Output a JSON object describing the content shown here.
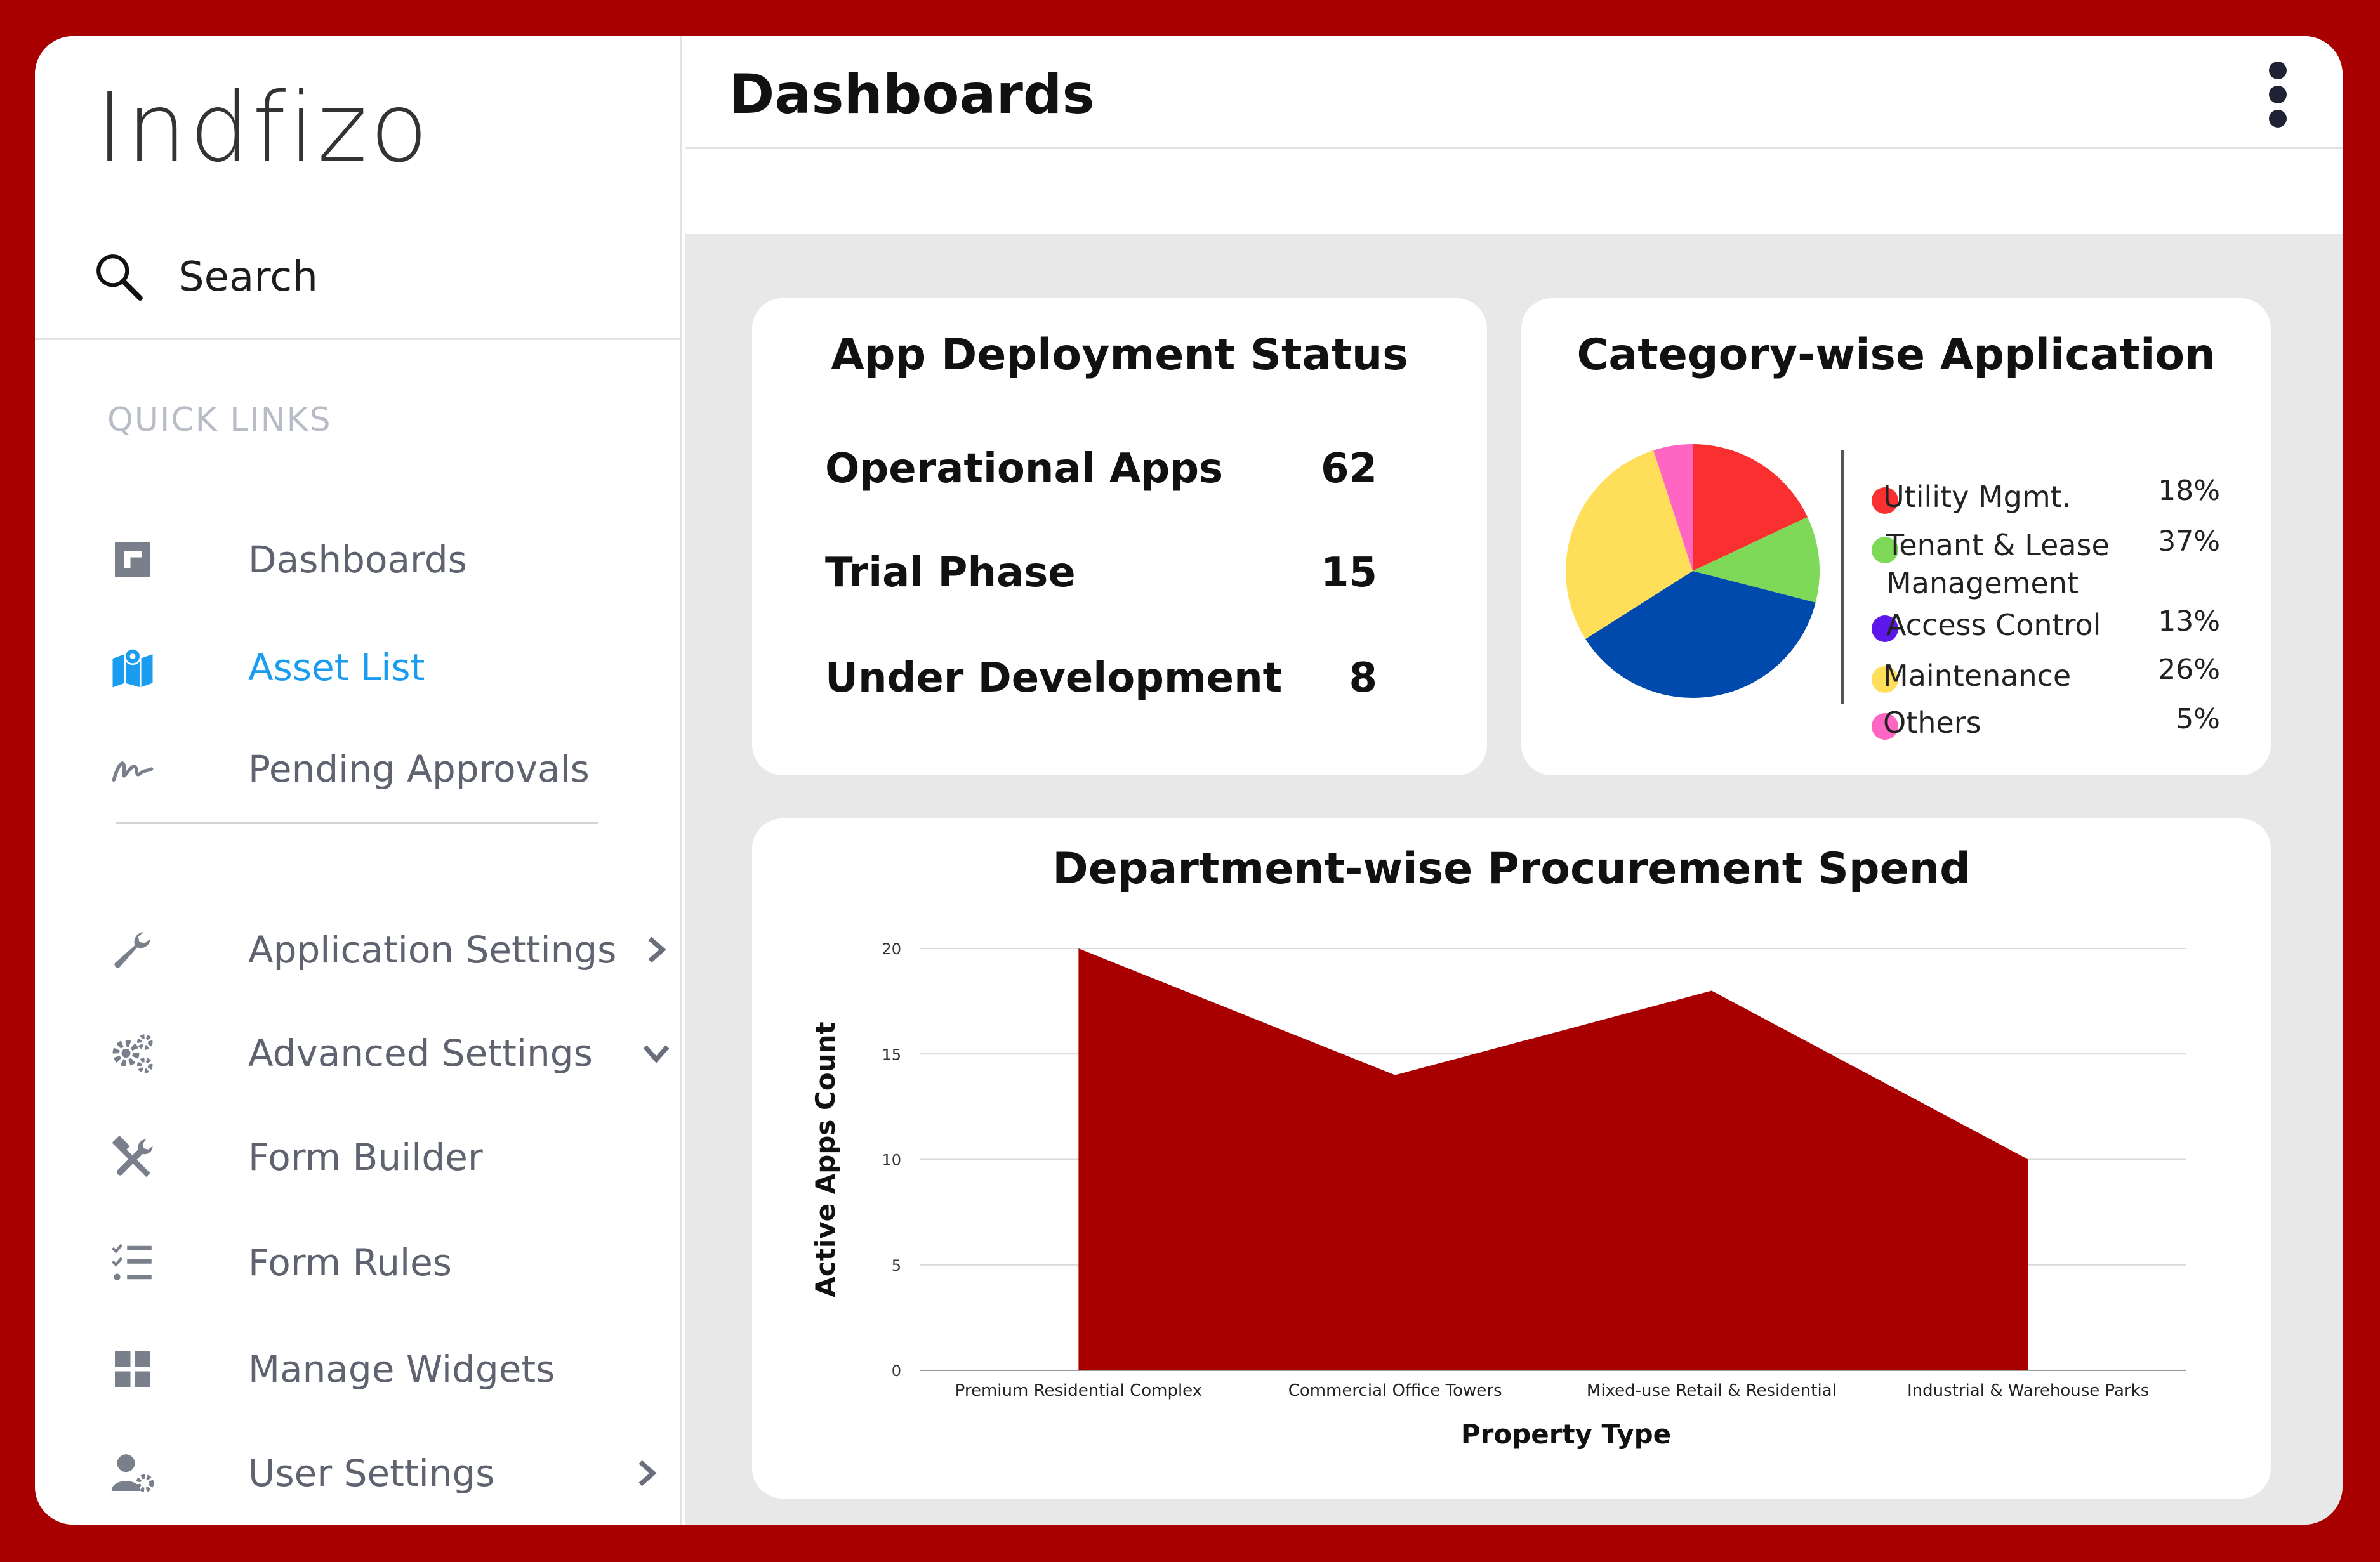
{
  "app": {
    "logo_text": "Indfizo"
  },
  "sidebar": {
    "search_label": "Search",
    "section_title": "QUICK LINKS",
    "quick_links": [
      {
        "label": "Dashboards",
        "icon": "dashboard-icon"
      },
      {
        "label": "Asset List",
        "icon": "map-icon",
        "active": true
      },
      {
        "label": "Pending Approvals",
        "icon": "signature-icon"
      }
    ],
    "settings": [
      {
        "label": "Application Settings",
        "icon": "wrench-icon",
        "chevron": "right"
      },
      {
        "label": "Advanced Settings",
        "icon": "gears-icon",
        "chevron": "down"
      },
      {
        "label": "Form Builder",
        "icon": "tools-icon"
      },
      {
        "label": "Form Rules",
        "icon": "checklist-icon"
      },
      {
        "label": "Manage Widgets",
        "icon": "widgets-icon"
      },
      {
        "label": "User Settings",
        "icon": "user-gear-icon",
        "chevron": "right"
      }
    ]
  },
  "header": {
    "title": "Dashboards"
  },
  "deployment_card": {
    "title": "App Deployment Status",
    "rows": [
      {
        "label": "Operational Apps",
        "value": "62"
      },
      {
        "label": "Trial Phase",
        "value": "15"
      },
      {
        "label": "Under Development",
        "value": "8"
      }
    ]
  },
  "category_card": {
    "title": "Category-wise Application",
    "legend": [
      {
        "label": "Utility Mgmt.",
        "pct": "18%",
        "color": "#fa3030"
      },
      {
        "label": "Tenant & Lease Management",
        "line1": "Tenant & Lease",
        "line2": "Management",
        "pct": "37%",
        "color": "#7dd957"
      },
      {
        "label": "Access Control",
        "pct": "13%",
        "color": "#5e17eb"
      },
      {
        "label": "Maintenance",
        "pct": "26%",
        "color": "#ffde59"
      },
      {
        "label": "Others",
        "pct": "5%",
        "color": "#ff66c4"
      }
    ],
    "pie_colors": [
      "#fa3030",
      "#7dd957",
      "#004aad",
      "#ffde59",
      "#ff66c4"
    ]
  },
  "spend_card": {
    "title": "Department-wise Procurement Spend"
  },
  "chart_data": {
    "type": "area",
    "title": "Department-wise Procurement Spend",
    "xlabel": "Property Type",
    "ylabel": "Active Apps Count",
    "categories": [
      "Premium Residential Complex",
      "Commercial Office Towers",
      "Mixed-use Retail & Residential",
      "Industrial & Warehouse Parks"
    ],
    "values": [
      20,
      14,
      18,
      10
    ],
    "ylim": [
      0,
      20
    ],
    "yticks": [
      0,
      5,
      10,
      15,
      20
    ],
    "color": "#a80000",
    "grid": true
  }
}
